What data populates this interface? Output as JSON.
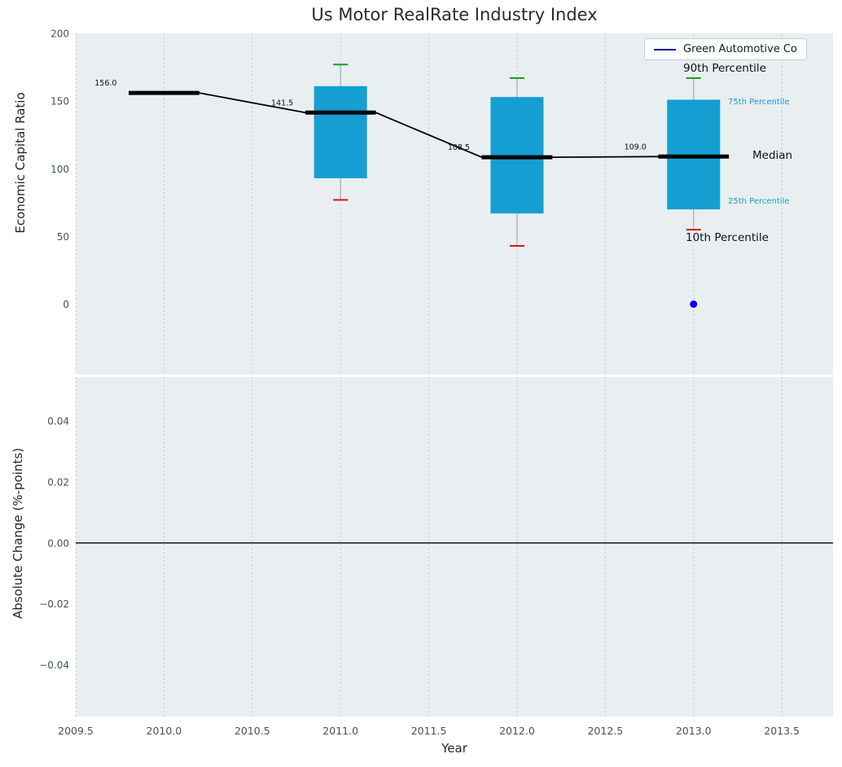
{
  "legend": {
    "label": "Green Automotive Co"
  },
  "colors": {
    "panel_bg": "#e9eef0",
    "grid": "#bcc7cc",
    "box_fill": "#149ed2",
    "median": "#000000",
    "whisker": "#9aa0a3",
    "cap_top": "#0da10d",
    "cap_bottom": "#e01212",
    "company_point": "#0000f5",
    "company_line": "#00008b",
    "percentile_label": "#1b9cd4",
    "tick": "#44525c",
    "zero_line": "#000000"
  },
  "chart_data": {
    "type": "boxplot",
    "title": "Us Motor RealRate Industry Index",
    "x": {
      "label": "Year",
      "xlim": [
        2009.5,
        2013.79
      ],
      "tick_values": [
        2009.5,
        2010.0,
        2010.5,
        2011.0,
        2011.5,
        2012.0,
        2012.5,
        2013.0,
        2013.5
      ],
      "tick_labels": [
        "2009.5",
        "2010.0",
        "2010.5",
        "2011.0",
        "2011.5",
        "2012.0",
        "2012.5",
        "2013.0",
        "2013.5"
      ]
    },
    "top_panel": {
      "ylabel": "Economic Capital Ratio",
      "ylim": [
        -52,
        200
      ],
      "ytick_values": [
        0,
        50,
        100,
        150,
        200
      ],
      "ytick_labels": [
        "0",
        "50",
        "100",
        "150",
        "200"
      ],
      "boxes": [
        {
          "year": 2010,
          "median": 156.0,
          "label": "156.0",
          "q1": null,
          "q3": null,
          "p10": null,
          "p90": null
        },
        {
          "year": 2011,
          "median": 141.5,
          "label": "141.5",
          "q1": 93,
          "q3": 161,
          "p10": 77,
          "p90": 177
        },
        {
          "year": 2012,
          "median": 108.5,
          "label": "108.5",
          "q1": 67,
          "q3": 153,
          "p10": 43,
          "p90": 167
        },
        {
          "year": 2013,
          "median": 109.0,
          "label": "109.0",
          "q1": 70,
          "q3": 151,
          "p10": 55,
          "p90": 167
        }
      ],
      "company_point": {
        "year": 2013,
        "value": 0
      },
      "annotations": [
        {
          "id": "p90",
          "text": "90th Percentile"
        },
        {
          "id": "p75",
          "text": "75th Percentile"
        },
        {
          "id": "median",
          "text": "Median"
        },
        {
          "id": "p25",
          "text": "25th Percentile"
        },
        {
          "id": "p10",
          "text": "10th Percentile"
        }
      ]
    },
    "bottom_panel": {
      "ylabel": "Absolute Change (%-points)",
      "ylim": [
        -0.057,
        0.0545
      ],
      "ytick_values": [
        0.04,
        0.02,
        0,
        -0.02,
        -0.04
      ],
      "ytick_labels": [
        "0.04",
        "0.02",
        "0.00",
        "−0.02",
        "−0.04"
      ],
      "zero_line": 0
    }
  }
}
